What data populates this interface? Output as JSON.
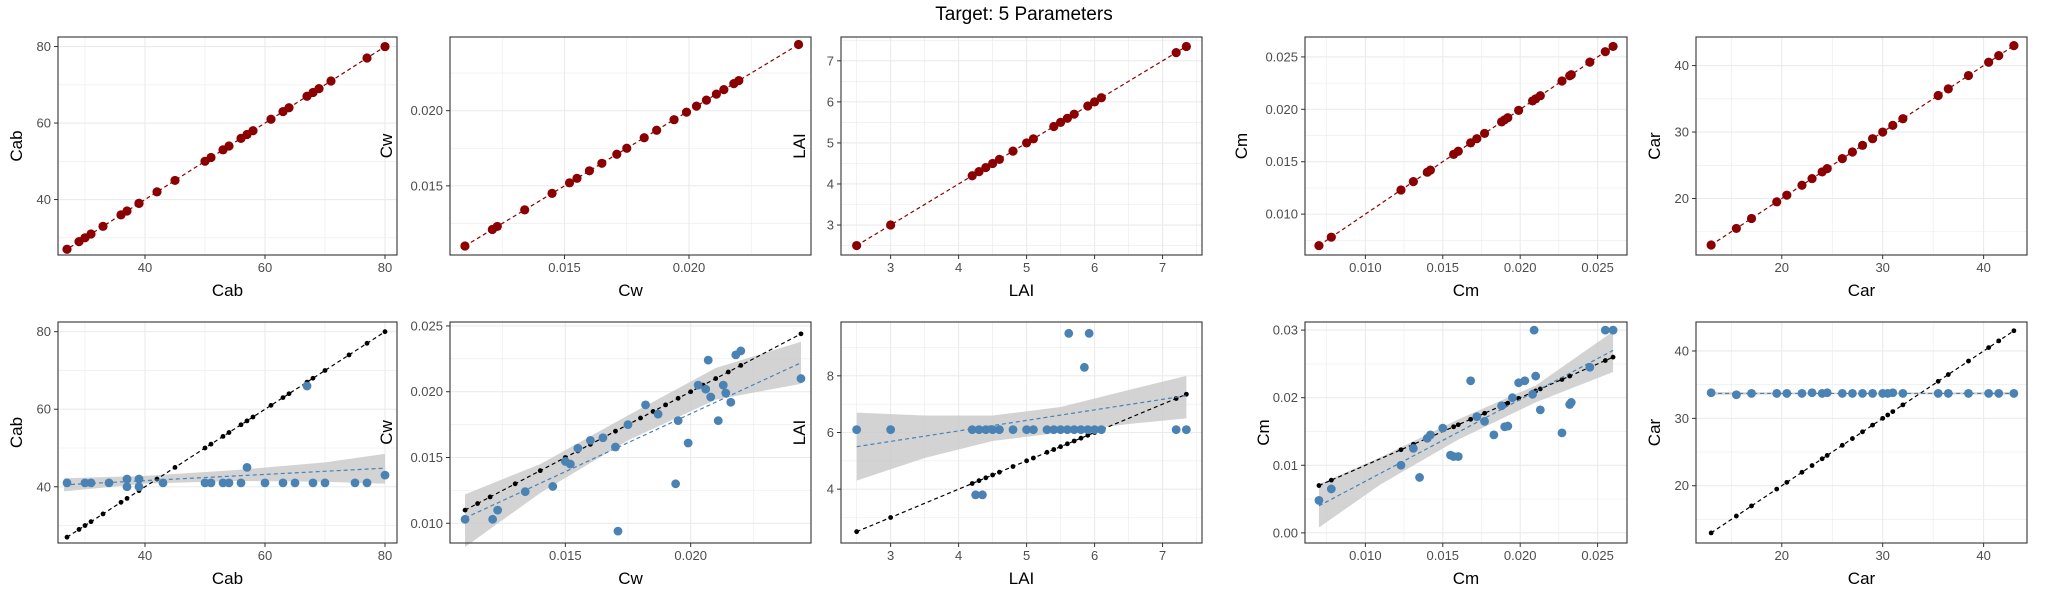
{
  "title": "Target: 5 Parameters",
  "colors": {
    "truth_points": "#8b0000",
    "pred_points": "#4a82b4",
    "reference": "#000000",
    "band": "#c8c8c8",
    "grid": "#ebebeb",
    "axis_text": "#4d4d4d"
  },
  "chart_data": [
    {
      "type": "scatter",
      "panel": "Cab",
      "row": 1,
      "xlabel": "Cab",
      "ylabel": "Cab",
      "xlim": [
        25.5,
        82
      ],
      "ylim": [
        25.5,
        82.5
      ],
      "xticks": [
        40,
        60,
        80
      ],
      "yticks": [
        40,
        60,
        80
      ],
      "x": [
        27,
        29,
        30,
        31,
        33,
        36,
        37,
        39,
        39,
        42,
        45,
        50,
        51,
        53,
        54,
        56,
        57,
        58,
        61,
        63,
        64,
        67,
        68,
        69,
        71,
        77,
        80
      ],
      "y": [
        27,
        29,
        30,
        31,
        33,
        36,
        37,
        39,
        39,
        42,
        45,
        50,
        51,
        53,
        54,
        56,
        57,
        58,
        61,
        63,
        64,
        67,
        68,
        69,
        71,
        77,
        80
      ],
      "fit": {
        "from": [
          26.5,
          26.5
        ],
        "to": [
          80,
          80
        ]
      }
    },
    {
      "type": "scatter",
      "panel": "Cw",
      "row": 1,
      "xlabel": "Cw",
      "ylabel": "Cw",
      "xlim": [
        0.0104,
        0.0249
      ],
      "ylim": [
        0.0104,
        0.0249
      ],
      "xticks": [
        0.015,
        0.02
      ],
      "yticks": [
        0.015,
        0.02
      ],
      "x": [
        0.011,
        0.0121,
        0.0123,
        0.0134,
        0.0145,
        0.0152,
        0.0155,
        0.016,
        0.0165,
        0.0171,
        0.0175,
        0.0182,
        0.0187,
        0.0194,
        0.0199,
        0.0203,
        0.0207,
        0.0211,
        0.0214,
        0.0218,
        0.022,
        0.0244
      ],
      "y": [
        0.011,
        0.0121,
        0.0123,
        0.0134,
        0.0145,
        0.0152,
        0.0155,
        0.016,
        0.0165,
        0.0171,
        0.0175,
        0.0182,
        0.0187,
        0.0194,
        0.0199,
        0.0203,
        0.0207,
        0.0211,
        0.0214,
        0.0218,
        0.022,
        0.0244
      ],
      "fit": {
        "from": [
          0.011,
          0.011
        ],
        "to": [
          0.0244,
          0.0244
        ]
      }
    },
    {
      "type": "scatter",
      "panel": "LAI",
      "row": 1,
      "xlabel": "LAI",
      "ylabel": "LAI",
      "xlim": [
        2.27,
        7.58
      ],
      "ylim": [
        2.27,
        7.58
      ],
      "xticks": [
        3,
        4,
        5,
        6,
        7
      ],
      "yticks": [
        3,
        4,
        5,
        6,
        7
      ],
      "x": [
        2.5,
        3.0,
        4.2,
        4.3,
        4.4,
        4.5,
        4.6,
        4.8,
        5.0,
        5.1,
        5.4,
        5.5,
        5.6,
        5.7,
        5.9,
        6.0,
        6.1,
        7.2,
        7.35
      ],
      "y": [
        2.5,
        3.0,
        4.2,
        4.3,
        4.4,
        4.5,
        4.6,
        4.8,
        5.0,
        5.1,
        5.4,
        5.5,
        5.6,
        5.7,
        5.9,
        6.0,
        6.1,
        7.2,
        7.35
      ],
      "fit": {
        "from": [
          2.5,
          2.5
        ],
        "to": [
          7.35,
          7.35
        ]
      }
    },
    {
      "type": "scatter",
      "panel": "Cm",
      "row": 1,
      "xlabel": "Cm",
      "ylabel": "Cm",
      "xlim": [
        0.0061,
        0.0269
      ],
      "ylim": [
        0.0061,
        0.0269
      ],
      "xticks": [
        0.01,
        0.015,
        0.02,
        0.025
      ],
      "yticks": [
        0.01,
        0.015,
        0.02,
        0.025
      ],
      "x": [
        0.007,
        0.0078,
        0.0123,
        0.0131,
        0.014,
        0.0142,
        0.0157,
        0.016,
        0.0168,
        0.0172,
        0.0177,
        0.0188,
        0.019,
        0.0192,
        0.0199,
        0.0208,
        0.021,
        0.0213,
        0.0227,
        0.0232,
        0.0233,
        0.0245,
        0.0255,
        0.026
      ],
      "y": [
        0.007,
        0.0078,
        0.0123,
        0.0131,
        0.014,
        0.0142,
        0.0157,
        0.016,
        0.0168,
        0.0172,
        0.0177,
        0.0188,
        0.019,
        0.0192,
        0.0199,
        0.0208,
        0.021,
        0.0213,
        0.0227,
        0.0232,
        0.0233,
        0.0245,
        0.0255,
        0.026
      ],
      "fit": {
        "from": [
          0.007,
          0.007
        ],
        "to": [
          0.026,
          0.026
        ]
      }
    },
    {
      "type": "scatter",
      "panel": "Car",
      "row": 1,
      "xlabel": "Car",
      "ylabel": "Car",
      "xlim": [
        11.5,
        44.3
      ],
      "ylim": [
        11.5,
        44.3
      ],
      "xticks": [
        20,
        30,
        40
      ],
      "yticks": [
        20,
        30,
        40
      ],
      "x": [
        13,
        15.5,
        17,
        19.5,
        20.5,
        22,
        23,
        24,
        24.5,
        26,
        27,
        28,
        29,
        30,
        31,
        32,
        35.5,
        36.5,
        38.5,
        40.5,
        41.5,
        43
      ],
      "y": [
        13,
        15.5,
        17,
        19.5,
        20.5,
        22,
        23,
        24,
        24.5,
        26,
        27,
        28,
        29,
        30,
        31,
        32,
        35.5,
        36.5,
        38.5,
        40.5,
        41.5,
        43
      ],
      "fit": {
        "from": [
          13,
          13
        ],
        "to": [
          43,
          43
        ]
      }
    },
    {
      "type": "scatter",
      "panel": "Cab",
      "row": 2,
      "xlabel": "Cab",
      "ylabel": "Cab",
      "xlim": [
        25.5,
        82
      ],
      "ylim": [
        25.5,
        82.5
      ],
      "xticks": [
        40,
        60,
        80
      ],
      "yticks": [
        40,
        60,
        80
      ],
      "reference_x": [
        27,
        29,
        30,
        31,
        33,
        36,
        37,
        39,
        42,
        45,
        50,
        51,
        53,
        54,
        56,
        57,
        58,
        61,
        63,
        64,
        67,
        68,
        70,
        74,
        77,
        80
      ],
      "x": [
        27,
        30,
        31,
        34,
        37,
        37,
        39,
        39,
        43,
        50,
        51,
        53,
        54,
        56,
        57,
        60,
        63,
        65,
        67,
        68,
        70,
        75,
        77,
        80
      ],
      "y": [
        41,
        41,
        41,
        41,
        40,
        42,
        42,
        40,
        41,
        41,
        41,
        41,
        41,
        41,
        45,
        41,
        41,
        41,
        66,
        41,
        41,
        41,
        41,
        43
      ],
      "fit": {
        "from": [
          26.5,
          40.5
        ],
        "to": [
          80,
          44.8
        ]
      },
      "band": {
        "x": [
          26.5,
          40,
          55,
          70,
          80
        ],
        "lo": [
          38.8,
          40.8,
          41.5,
          41.3,
          40.8
        ],
        "hi": [
          42.2,
          42.8,
          44.3,
          46.3,
          48.5
        ]
      }
    },
    {
      "type": "scatter",
      "panel": "Cw",
      "row": 2,
      "xlabel": "Cw",
      "ylabel": "Cw",
      "xlim": [
        0.0104,
        0.0248
      ],
      "ylim": [
        0.0085,
        0.0253
      ],
      "xticks": [
        0.015,
        0.02
      ],
      "yticks": [
        0.01,
        0.015,
        0.02,
        0.025
      ],
      "reference_x": [
        0.011,
        0.0115,
        0.012,
        0.013,
        0.014,
        0.015,
        0.0155,
        0.016,
        0.0165,
        0.017,
        0.0175,
        0.018,
        0.0185,
        0.019,
        0.0195,
        0.02,
        0.0205,
        0.021,
        0.0215,
        0.022,
        0.0244
      ],
      "x": [
        0.011,
        0.0121,
        0.0123,
        0.0134,
        0.0145,
        0.0152,
        0.0155,
        0.016,
        0.0165,
        0.0171,
        0.0175,
        0.0182,
        0.0187,
        0.0194,
        0.0199,
        0.0203,
        0.0207,
        0.0211,
        0.0214,
        0.0218,
        0.022,
        0.0244,
        0.015,
        0.017,
        0.0195,
        0.0206,
        0.0208,
        0.0213,
        0.0216
      ],
      "y": [
        0.0103,
        0.0103,
        0.011,
        0.0124,
        0.0128,
        0.0145,
        0.0157,
        0.0163,
        0.0165,
        0.0094,
        0.0175,
        0.019,
        0.0183,
        0.013,
        0.0161,
        0.0205,
        0.0224,
        0.0178,
        0.0199,
        0.0228,
        0.0231,
        0.021,
        0.0147,
        0.0158,
        0.0178,
        0.0202,
        0.0196,
        0.0205,
        0.0192
      ],
      "fit": {
        "from": [
          0.011,
          0.0104
        ],
        "to": [
          0.0244,
          0.0222
        ]
      },
      "band": {
        "x": [
          0.011,
          0.014,
          0.0175,
          0.021,
          0.0244
        ],
        "lo": [
          0.0082,
          0.0123,
          0.0163,
          0.0194,
          0.0206
        ],
        "hi": [
          0.0122,
          0.0145,
          0.0182,
          0.0218,
          0.0238
        ]
      }
    },
    {
      "type": "scatter",
      "panel": "LAI",
      "row": 2,
      "xlabel": "LAI",
      "ylabel": "LAI",
      "xlim": [
        2.27,
        7.58
      ],
      "ylim": [
        2.1,
        9.9
      ],
      "xticks": [
        3,
        4,
        5,
        6,
        7
      ],
      "yticks": [
        4,
        6,
        8
      ],
      "reference_x": [
        2.5,
        3.0,
        4.2,
        4.3,
        4.4,
        4.5,
        4.6,
        4.8,
        5.0,
        5.1,
        5.3,
        5.4,
        5.5,
        5.6,
        5.7,
        5.8,
        5.9,
        6.0,
        6.1,
        7.2,
        7.35
      ],
      "x": [
        2.5,
        3.0,
        4.2,
        4.3,
        4.4,
        4.5,
        4.6,
        4.8,
        5.0,
        5.1,
        5.3,
        5.4,
        5.5,
        5.6,
        5.7,
        5.8,
        5.9,
        6.0,
        6.1,
        7.2,
        7.35,
        4.25,
        4.35,
        5.62,
        5.85,
        5.92
      ],
      "y": [
        6.1,
        6.1,
        6.1,
        6.1,
        6.1,
        6.1,
        6.1,
        6.1,
        6.1,
        6.1,
        6.1,
        6.1,
        6.1,
        6.1,
        6.1,
        6.1,
        6.1,
        6.1,
        6.1,
        6.1,
        6.1,
        3.8,
        3.8,
        9.5,
        8.3,
        9.5
      ],
      "fit": {
        "from": [
          2.5,
          5.5
        ],
        "to": [
          7.35,
          7.3
        ]
      },
      "band": {
        "x": [
          2.5,
          3.5,
          4.5,
          5.5,
          6.5,
          7.35
        ],
        "lo": [
          4.3,
          5.1,
          5.7,
          6.0,
          6.3,
          6.5
        ],
        "hi": [
          6.7,
          6.6,
          6.6,
          6.9,
          7.5,
          8.0
        ]
      }
    },
    {
      "type": "scatter",
      "panel": "Cm",
      "row": 2,
      "xlabel": "Cm",
      "ylabel": "Cm",
      "xlim": [
        0.0061,
        0.0269
      ],
      "ylim": [
        -0.0015,
        0.0312
      ],
      "xticks": [
        0.01,
        0.015,
        0.02,
        0.025
      ],
      "yticks": [
        0,
        0.01,
        0.02,
        0.03
      ],
      "reference_x": [
        0.007,
        0.0078,
        0.0123,
        0.0131,
        0.014,
        0.0142,
        0.0157,
        0.016,
        0.0168,
        0.0172,
        0.0177,
        0.0188,
        0.019,
        0.0192,
        0.0199,
        0.0208,
        0.021,
        0.0213,
        0.0227,
        0.0232,
        0.0245,
        0.0255,
        0.026
      ],
      "x": [
        0.007,
        0.0078,
        0.0123,
        0.0131,
        0.014,
        0.0142,
        0.0157,
        0.016,
        0.0168,
        0.0172,
        0.0177,
        0.0188,
        0.019,
        0.0192,
        0.0199,
        0.0208,
        0.021,
        0.0213,
        0.0227,
        0.0232,
        0.0233,
        0.0245,
        0.0255,
        0.026,
        0.0135,
        0.015,
        0.0155,
        0.0183,
        0.0195,
        0.0203,
        0.0209
      ],
      "y": [
        0.0048,
        0.0065,
        0.01,
        0.0125,
        0.014,
        0.0145,
        0.0113,
        0.0113,
        0.0225,
        0.0172,
        0.0165,
        0.0188,
        0.0157,
        0.0158,
        0.0222,
        0.0205,
        0.0232,
        0.0182,
        0.0148,
        0.019,
        0.0193,
        0.0245,
        0.03,
        0.03,
        0.0082,
        0.0155,
        0.0115,
        0.0145,
        0.02,
        0.0225,
        0.03
      ],
      "fit": {
        "from": [
          0.007,
          0.004
        ],
        "to": [
          0.026,
          0.027
        ]
      },
      "band": {
        "x": [
          0.007,
          0.011,
          0.016,
          0.021,
          0.026
        ],
        "lo": [
          0.0008,
          0.0072,
          0.0138,
          0.0193,
          0.0238
        ],
        "hi": [
          0.0072,
          0.0112,
          0.0168,
          0.0218,
          0.0298
        ]
      }
    },
    {
      "type": "scatter",
      "panel": "Car",
      "row": 2,
      "xlabel": "Car",
      "ylabel": "Car",
      "xlim": [
        11.5,
        44.3
      ],
      "ylim": [
        11.5,
        44.3
      ],
      "xticks": [
        20,
        30,
        40
      ],
      "yticks": [
        20,
        30,
        40
      ],
      "reference_x": [
        13,
        15.5,
        17,
        19.5,
        20.5,
        22,
        23,
        24,
        24.5,
        26,
        27,
        28,
        29,
        30,
        30.5,
        31,
        32,
        35.5,
        36.5,
        38.5,
        40.5,
        41.5,
        43
      ],
      "x": [
        13,
        15.5,
        17,
        19.5,
        20.5,
        22,
        23,
        24,
        24.5,
        26,
        27,
        28,
        29,
        30,
        30.5,
        31,
        32,
        35.5,
        36.5,
        38.5,
        40.5,
        41.5,
        43
      ],
      "y": [
        33.8,
        33.5,
        33.7,
        33.7,
        33.7,
        33.7,
        33.8,
        33.7,
        33.8,
        33.7,
        33.7,
        33.7,
        33.7,
        33.7,
        33.7,
        33.8,
        33.7,
        33.7,
        33.7,
        33.7,
        33.7,
        33.7,
        33.7
      ],
      "fit": {
        "from": [
          13,
          33.7
        ],
        "to": [
          43,
          33.7
        ]
      },
      "band": {
        "x": [
          13,
          28,
          43
        ],
        "lo": [
          33.5,
          33.6,
          33.5
        ],
        "hi": [
          33.9,
          33.8,
          33.9
        ]
      }
    }
  ]
}
